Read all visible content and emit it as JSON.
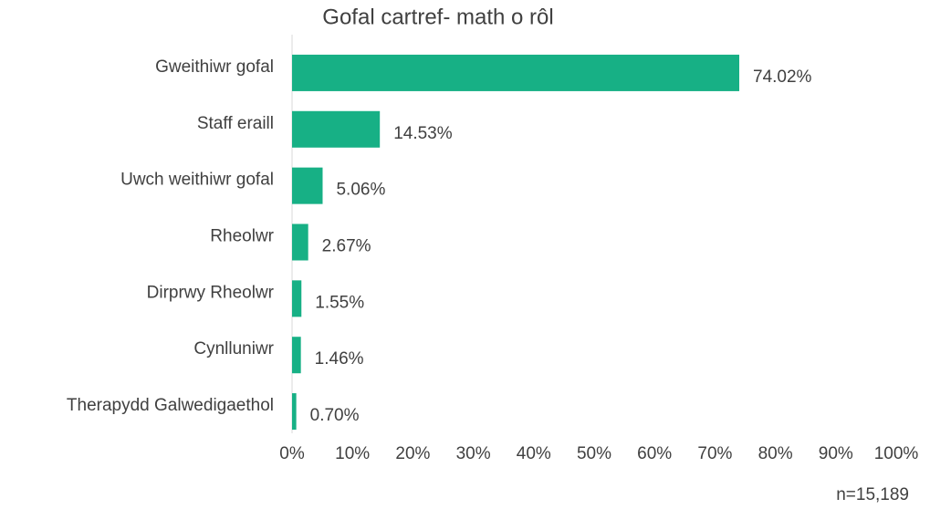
{
  "chart_data": {
    "type": "bar",
    "orientation": "horizontal",
    "title": "Gofal cartref- math o rôl",
    "categories": [
      "Gweithiwr gofal",
      "Staff eraill",
      "Uwch weithiwr gofal",
      "Rheolwr",
      "Dirprwy Rheolwr",
      "Cynlluniwr",
      "Therapydd Galwedigaethol"
    ],
    "values": [
      74.02,
      14.53,
      5.06,
      2.67,
      1.55,
      1.46,
      0.7
    ],
    "value_labels": [
      "74.02%",
      "14.53%",
      "5.06%",
      "2.67%",
      "1.55%",
      "1.46%",
      "0.70%"
    ],
    "color": "#17b085",
    "xlim": [
      0,
      100
    ],
    "xticks": [
      {
        "value": 0,
        "label": "0%"
      },
      {
        "value": 10,
        "label": "10%"
      },
      {
        "value": 20,
        "label": "20%"
      },
      {
        "value": 30,
        "label": "30%"
      },
      {
        "value": 40,
        "label": "40%"
      },
      {
        "value": 50,
        "label": "50%"
      },
      {
        "value": 60,
        "label": "60%"
      },
      {
        "value": 70,
        "label": "70%"
      },
      {
        "value": 80,
        "label": "80%"
      },
      {
        "value": 90,
        "label": "90%"
      },
      {
        "value": 100,
        "label": "100%"
      }
    ],
    "grid": false,
    "annotation": "n=15,189"
  }
}
